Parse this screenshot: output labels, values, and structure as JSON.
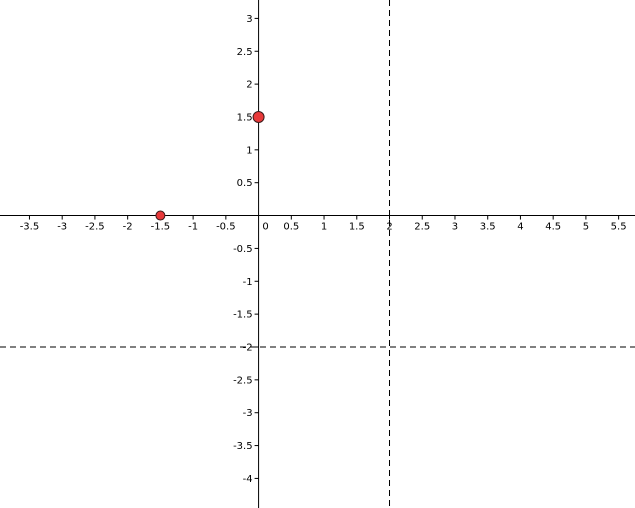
{
  "graph": {
    "x_range": [
      -3.95,
      5.75
    ],
    "y_range": [
      -4.45,
      3.28
    ],
    "x_ticks": [
      {
        "value": -3.5,
        "label": "-3.5"
      },
      {
        "value": -3,
        "label": "-3"
      },
      {
        "value": -2.5,
        "label": "-2.5"
      },
      {
        "value": -2,
        "label": "-2"
      },
      {
        "value": -1.5,
        "label": "-1.5"
      },
      {
        "value": -1,
        "label": "-1"
      },
      {
        "value": -0.5,
        "label": "-0.5"
      },
      {
        "value": 0,
        "label": "0"
      },
      {
        "value": 0.5,
        "label": "0.5"
      },
      {
        "value": 1,
        "label": "1"
      },
      {
        "value": 1.5,
        "label": "1.5"
      },
      {
        "value": 2,
        "label": "2"
      },
      {
        "value": 2.5,
        "label": "2.5"
      },
      {
        "value": 3,
        "label": "3"
      },
      {
        "value": 3.5,
        "label": "3.5"
      },
      {
        "value": 4,
        "label": "4"
      },
      {
        "value": 4.5,
        "label": "4.5"
      },
      {
        "value": 5,
        "label": "5"
      },
      {
        "value": 5.5,
        "label": "5.5"
      }
    ],
    "y_ticks": [
      {
        "value": 3,
        "label": "3"
      },
      {
        "value": 2.5,
        "label": "2.5"
      },
      {
        "value": 2,
        "label": "2"
      },
      {
        "value": 1.5,
        "label": "1.5"
      },
      {
        "value": 1,
        "label": "1"
      },
      {
        "value": 0.5,
        "label": "0.5"
      },
      {
        "value": -0.5,
        "label": "-0.5"
      },
      {
        "value": -1,
        "label": "-1"
      },
      {
        "value": -1.5,
        "label": "-1.5"
      },
      {
        "value": -2,
        "label": "-2"
      },
      {
        "value": -2.5,
        "label": "-2.5"
      },
      {
        "value": -3,
        "label": "-3"
      },
      {
        "value": -3.5,
        "label": "-3.5"
      },
      {
        "value": -4,
        "label": "-4"
      }
    ],
    "asymptotes": {
      "vertical_x": 2,
      "horizontal_y": -2
    },
    "points": [
      {
        "name": "x-intercept",
        "x": -1.5,
        "y": 0,
        "size": "small"
      },
      {
        "name": "y-intercept",
        "x": 0,
        "y": 1.5,
        "size": "large"
      }
    ],
    "colors": {
      "axis": "#000000",
      "asymptote": "#000000",
      "point_fill": "#e8393a",
      "point_stroke": "#3a1a1a"
    }
  }
}
